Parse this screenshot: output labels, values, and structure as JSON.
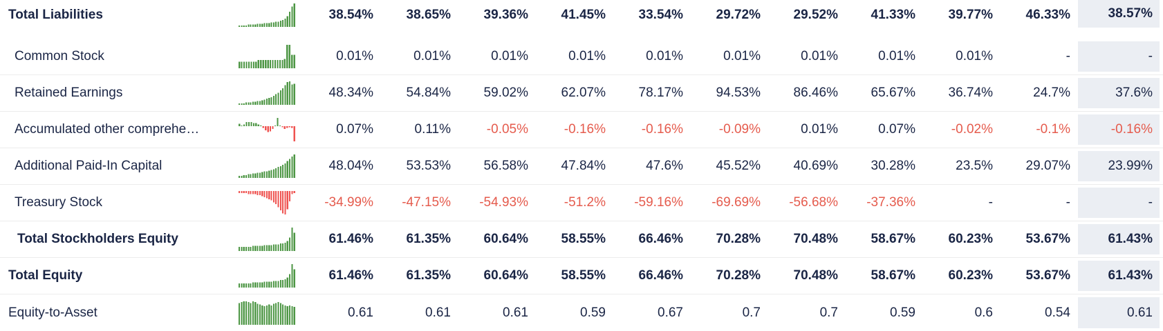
{
  "colors": {
    "text": "#1a2545",
    "negative_text": "#e55b4d",
    "positive_bar": "#4d9644",
    "negative_bar": "#ef5350",
    "highlight_bg": "#ebeef3",
    "separator": "#ececec",
    "background": "#ffffff"
  },
  "table": {
    "highlight_last_column": true,
    "rows": [
      {
        "label": "Total Liabilities",
        "bold": true,
        "indent": 0,
        "values": [
          "38.54%",
          "38.65%",
          "39.36%",
          "41.45%",
          "33.54%",
          "29.72%",
          "29.52%",
          "41.33%",
          "39.77%",
          "46.33%",
          "38.57%"
        ],
        "spark": [
          2,
          2,
          2,
          2,
          3,
          3,
          3,
          3,
          4,
          4,
          4,
          5,
          5,
          5,
          6,
          6,
          7,
          7,
          8,
          9,
          11,
          14,
          20,
          27,
          31
        ]
      },
      {
        "label": "Common Stock",
        "bold": false,
        "indent": 1,
        "values": [
          "0.01%",
          "0.01%",
          "0.01%",
          "0.01%",
          "0.01%",
          "0.01%",
          "0.01%",
          "0.01%",
          "0.01%",
          "-",
          "-"
        ],
        "spark": [
          8,
          8,
          8,
          8,
          8,
          8,
          8,
          8,
          10,
          10,
          10,
          10,
          10,
          10,
          10,
          10,
          10,
          10,
          10,
          11,
          28,
          28,
          16,
          16
        ]
      },
      {
        "label": "Retained Earnings",
        "bold": false,
        "indent": 1,
        "values": [
          "48.34%",
          "54.84%",
          "59.02%",
          "62.07%",
          "78.17%",
          "94.53%",
          "86.46%",
          "65.67%",
          "36.74%",
          "24.7%",
          "37.6%"
        ],
        "spark": [
          2,
          2,
          2,
          3,
          3,
          3,
          4,
          4,
          5,
          5,
          6,
          7,
          8,
          9,
          10,
          12,
          14,
          16,
          19,
          22,
          26,
          30,
          31,
          27,
          28
        ]
      },
      {
        "label": "Accumulated other comprehe…",
        "bold": false,
        "indent": 1,
        "values": [
          "0.07%",
          "0.11%",
          "-0.05%",
          "-0.16%",
          "-0.16%",
          "-0.09%",
          "0.01%",
          "0.07%",
          "-0.02%",
          "-0.1%",
          "-0.16%"
        ],
        "spark": [
          3,
          1,
          2,
          5,
          5,
          5,
          4,
          4,
          2,
          1,
          -2,
          -5,
          -7,
          -6,
          -3,
          1,
          10,
          1,
          -1,
          -3,
          -2,
          -1,
          -2,
          -18
        ]
      },
      {
        "label": "Additional Paid-In Capital",
        "bold": false,
        "indent": 1,
        "values": [
          "48.04%",
          "53.53%",
          "56.58%",
          "47.84%",
          "47.6%",
          "45.52%",
          "40.69%",
          "30.28%",
          "23.5%",
          "29.07%",
          "23.99%"
        ],
        "spark": [
          3,
          3,
          4,
          4,
          5,
          5,
          6,
          6,
          7,
          7,
          8,
          9,
          9,
          10,
          11,
          12,
          13,
          15,
          16,
          18,
          20,
          23,
          26,
          29,
          32
        ]
      },
      {
        "label": "Treasury Stock",
        "bold": false,
        "indent": 1,
        "values": [
          "-34.99%",
          "-47.15%",
          "-54.93%",
          "-51.2%",
          "-59.16%",
          "-69.69%",
          "-56.68%",
          "-37.36%",
          "-",
          "-",
          "-"
        ],
        "spark": [
          -2,
          -2,
          -2,
          -2,
          -3,
          -3,
          -3,
          -3,
          -4,
          -4,
          -5,
          -6,
          -7,
          -8,
          -9,
          -11,
          -13,
          -16,
          -19,
          -22,
          -23,
          -18,
          -10,
          -3,
          -2
        ]
      },
      {
        "label": "Total Stockholders Equity",
        "bold": true,
        "indent": 2,
        "values": [
          "61.46%",
          "61.35%",
          "60.64%",
          "58.55%",
          "66.46%",
          "70.28%",
          "70.48%",
          "58.67%",
          "60.23%",
          "53.67%",
          "61.43%"
        ],
        "spark": [
          5,
          5,
          5,
          5,
          5,
          5,
          6,
          6,
          6,
          6,
          6,
          7,
          7,
          7,
          7,
          8,
          8,
          8,
          9,
          9,
          10,
          12,
          16,
          28,
          22
        ]
      },
      {
        "label": "Total Equity",
        "bold": true,
        "indent": 0,
        "values": [
          "61.46%",
          "61.35%",
          "60.64%",
          "58.55%",
          "66.46%",
          "70.28%",
          "70.48%",
          "58.67%",
          "60.23%",
          "53.67%",
          "61.43%"
        ],
        "spark": [
          5,
          5,
          5,
          5,
          5,
          5,
          6,
          6,
          6,
          6,
          6,
          7,
          7,
          7,
          7,
          8,
          8,
          8,
          9,
          9,
          10,
          12,
          16,
          28,
          22
        ]
      },
      {
        "label": "Equity-to-Asset",
        "bold": false,
        "indent": 0,
        "values": [
          "0.61",
          "0.61",
          "0.61",
          "0.59",
          "0.67",
          "0.7",
          "0.7",
          "0.59",
          "0.6",
          "0.54",
          "0.61"
        ],
        "spark": [
          27,
          28,
          29,
          29,
          28,
          27,
          29,
          28,
          26,
          25,
          24,
          23,
          24,
          25,
          24,
          26,
          27,
          28,
          27,
          25,
          24,
          23,
          24,
          23,
          22
        ]
      }
    ]
  }
}
